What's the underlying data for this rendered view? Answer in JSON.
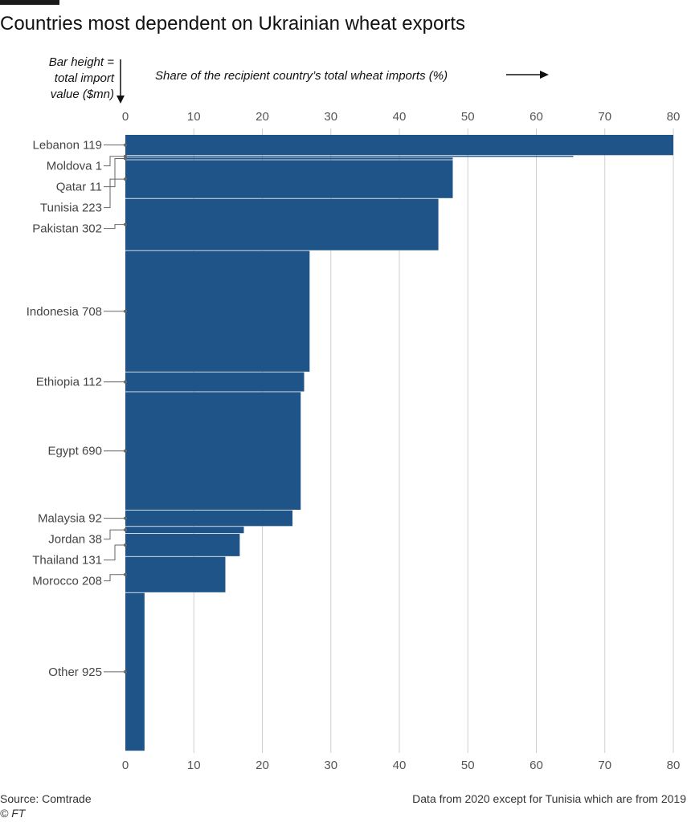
{
  "title": "Countries most dependent on Ukrainian wheat exports",
  "chart_data": {
    "type": "bar",
    "orientation": "horizontal",
    "variable_width": true,
    "title": "Countries most dependent on Ukrainian wheat exports",
    "bar_height_label": [
      "Bar height =",
      "total import",
      "value ($mn)"
    ],
    "xlabel": "Share of the recipient country’s total wheat imports (%)",
    "xlim": [
      0,
      80
    ],
    "xticks": [
      0,
      10,
      20,
      30,
      40,
      50,
      60,
      70,
      80
    ],
    "grid": true,
    "bar_color": "#1f5488",
    "grid_color": "#cfcfcf",
    "bars": [
      {
        "country": "Lebanon",
        "import_value": 119,
        "label": "Lebanon 119",
        "share": 80
      },
      {
        "country": "Moldova",
        "import_value": 1,
        "label": "Moldova 1",
        "share": 65.4
      },
      {
        "country": "Qatar",
        "import_value": 11,
        "label": "Qatar 11",
        "share": 47.8
      },
      {
        "country": "Tunisia",
        "import_value": 223,
        "label": "Tunisia 223",
        "share": 47.8
      },
      {
        "country": "Pakistan",
        "import_value": 302,
        "label": "Pakistan 302",
        "share": 45.7
      },
      {
        "country": "Indonesia",
        "import_value": 708,
        "label": "Indonesia 708",
        "share": 26.9
      },
      {
        "country": "Ethiopia",
        "import_value": 112,
        "label": "Ethiopia 112",
        "share": 26.1
      },
      {
        "country": "Egypt",
        "import_value": 690,
        "label": "Egypt 690",
        "share": 25.6
      },
      {
        "country": "Malaysia",
        "import_value": 92,
        "label": "Malaysia 92",
        "share": 24.4
      },
      {
        "country": "Jordan",
        "import_value": 38,
        "label": "Jordan 38",
        "share": 17.3
      },
      {
        "country": "Thailand",
        "import_value": 131,
        "label": "Thailand 131",
        "share": 16.7
      },
      {
        "country": "Morocco",
        "import_value": 208,
        "label": "Morocco 208",
        "share": 14.6
      },
      {
        "country": "Other",
        "import_value": 925,
        "label": "Other 925",
        "share": 2.8
      }
    ]
  },
  "footer": {
    "source": "Source: Comtrade",
    "credit": "© FT",
    "note": "Data from 2020 except for Tunisia which are from 2019"
  }
}
